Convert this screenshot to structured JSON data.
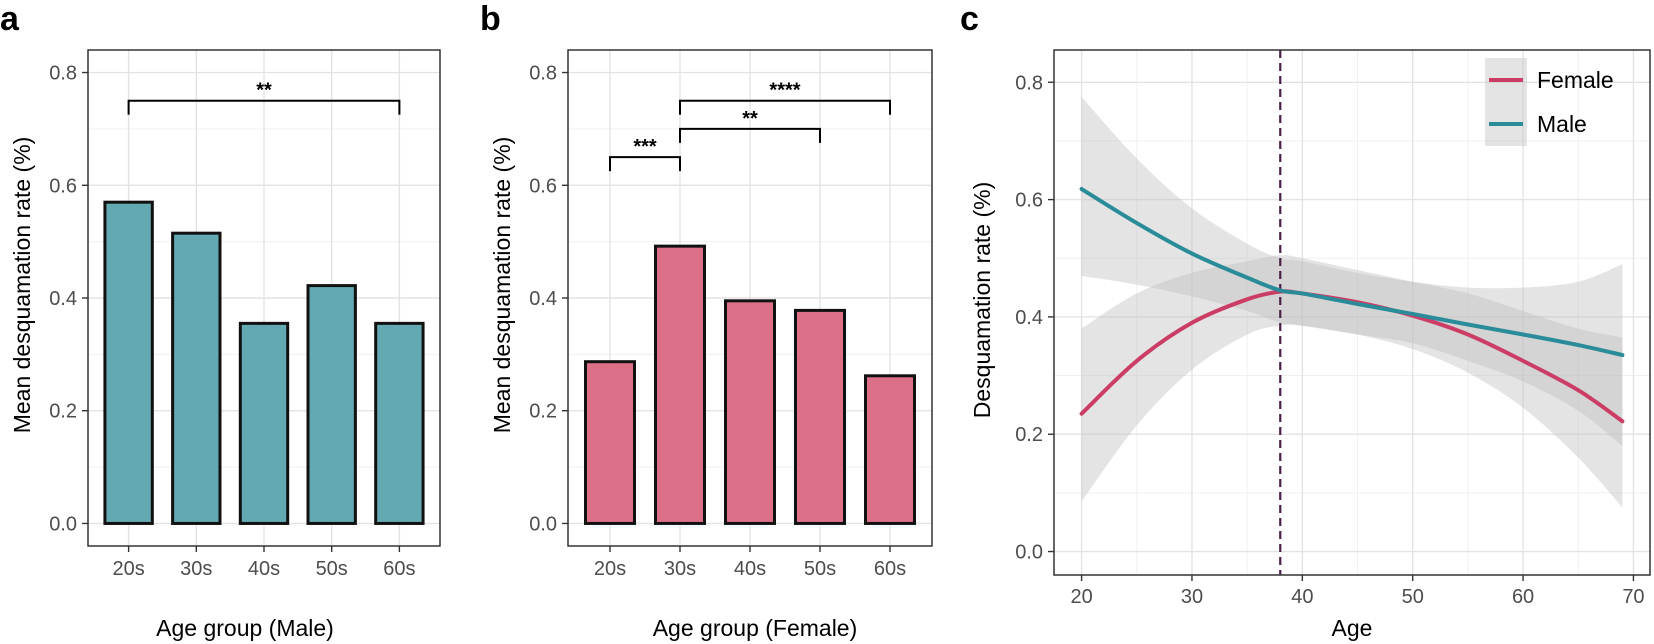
{
  "panels": {
    "a": {
      "letter": "a"
    },
    "b": {
      "letter": "b"
    },
    "c": {
      "letter": "c"
    }
  },
  "colors": {
    "male": "#2b8c99",
    "female": "#cc3d66",
    "male_bar_fill": "#62a9b1",
    "female_bar_fill": "#dc7089",
    "bar_edge": "#111111",
    "ribbon": "#bfbfbf",
    "vline": "#4a1f48"
  },
  "chart_data": [
    {
      "panel": "a",
      "type": "bar",
      "title": "",
      "xlabel": "Age group (Male)",
      "ylabel": "Mean desquamation rate (%)",
      "categories": [
        "20s",
        "30s",
        "40s",
        "50s",
        "60s"
      ],
      "values": [
        0.57,
        0.515,
        0.355,
        0.422,
        0.355
      ],
      "ylim": [
        -0.04,
        0.84
      ],
      "yticks": [
        0.0,
        0.2,
        0.4,
        0.6,
        0.8
      ],
      "ytick_labels": [
        "0.0",
        "0.2",
        "0.4",
        "0.6",
        "0.8"
      ],
      "grid": true,
      "significance": [
        {
          "from": "20s",
          "to": "60s",
          "y": 0.75,
          "label": "**"
        }
      ]
    },
    {
      "panel": "b",
      "type": "bar",
      "title": "",
      "xlabel": "Age group (Female)",
      "ylabel": "Mean desquamation rate (%)",
      "categories": [
        "20s",
        "30s",
        "40s",
        "50s",
        "60s"
      ],
      "values": [
        0.287,
        0.492,
        0.395,
        0.378,
        0.262
      ],
      "ylim": [
        -0.04,
        0.84
      ],
      "yticks": [
        0.0,
        0.2,
        0.4,
        0.6,
        0.8
      ],
      "ytick_labels": [
        "0.0",
        "0.2",
        "0.4",
        "0.6",
        "0.8"
      ],
      "grid": true,
      "significance": [
        {
          "from": "20s",
          "to": "30s",
          "y": 0.65,
          "label": "***"
        },
        {
          "from": "30s",
          "to": "50s",
          "y": 0.7,
          "label": "**"
        },
        {
          "from": "30s",
          "to": "60s",
          "y": 0.75,
          "label": "****"
        }
      ]
    },
    {
      "panel": "c",
      "type": "line",
      "title": "",
      "xlabel": "Age",
      "ylabel": "Desquamation rate (%)",
      "xlim": [
        17.5,
        71.5
      ],
      "ylim": [
        -0.04,
        0.855
      ],
      "xticks": [
        20,
        30,
        40,
        50,
        60,
        70
      ],
      "xtick_labels": [
        "20",
        "30",
        "40",
        "50",
        "60",
        "70"
      ],
      "yticks": [
        0.0,
        0.2,
        0.4,
        0.6,
        0.8
      ],
      "ytick_labels": [
        "0.0",
        "0.2",
        "0.4",
        "0.6",
        "0.8"
      ],
      "grid": true,
      "legend_position": "top-right",
      "vline": {
        "x": 38,
        "style": "dashed"
      },
      "series": [
        {
          "name": "Female",
          "x": [
            20,
            25,
            30,
            35,
            38,
            40,
            45,
            50,
            55,
            60,
            65,
            69
          ],
          "y": [
            0.235,
            0.325,
            0.39,
            0.43,
            0.443,
            0.44,
            0.425,
            0.402,
            0.37,
            0.325,
            0.275,
            0.222
          ],
          "ci_lower": [
            0.085,
            0.215,
            0.31,
            0.37,
            0.385,
            0.385,
            0.37,
            0.345,
            0.305,
            0.245,
            0.16,
            0.075
          ],
          "ci_upper": [
            0.38,
            0.44,
            0.475,
            0.495,
            0.505,
            0.5,
            0.48,
            0.46,
            0.44,
            0.41,
            0.38,
            0.365
          ]
        },
        {
          "name": "Male",
          "x": [
            20,
            25,
            30,
            35,
            38,
            40,
            45,
            50,
            55,
            60,
            65,
            69
          ],
          "y": [
            0.618,
            0.56,
            0.508,
            0.467,
            0.445,
            0.44,
            0.422,
            0.405,
            0.387,
            0.37,
            0.352,
            0.335
          ],
          "ci_lower": [
            0.47,
            0.455,
            0.435,
            0.41,
            0.39,
            0.385,
            0.37,
            0.355,
            0.325,
            0.29,
            0.24,
            0.18
          ],
          "ci_upper": [
            0.775,
            0.67,
            0.585,
            0.525,
            0.5,
            0.495,
            0.475,
            0.46,
            0.45,
            0.45,
            0.46,
            0.49
          ]
        }
      ]
    }
  ]
}
